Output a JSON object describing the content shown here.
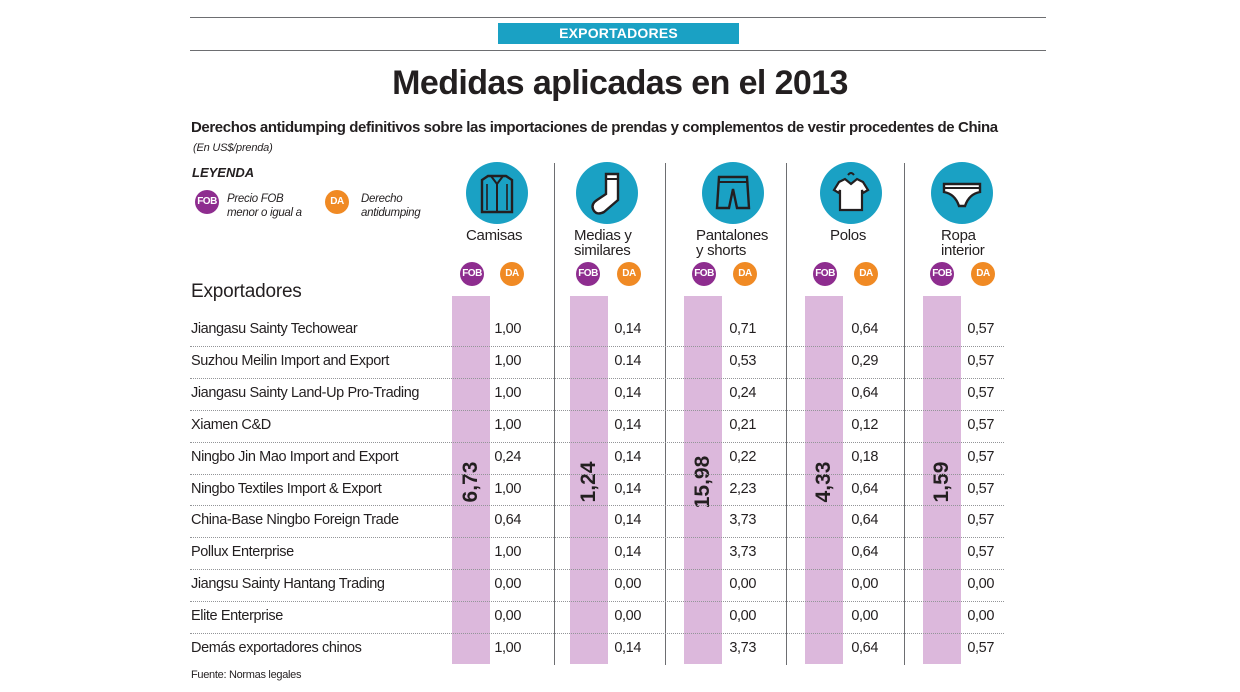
{
  "header": {
    "section": "EXPORTADORES",
    "title": "Medidas aplicadas en el 2013",
    "subtitle": "Derechos antidumping definitivos sobre las importaciones de prendas y complementos de vestir procedentes de China",
    "unit": "(En US$/prenda)"
  },
  "legend": {
    "title": "LEYENDA",
    "fob_badge": "FOB",
    "fob_line1": "Precio FOB",
    "fob_line2": "menor o igual a",
    "da_badge": "DA",
    "da_line1": "Derecho",
    "da_line2": "antidumping"
  },
  "colors": {
    "accent": "#1aa1c4",
    "fob": "#8e2d8f",
    "da": "#f08a24",
    "fob_bar": "#dcb8dc"
  },
  "chart_data": {
    "type": "table",
    "row_header": "Exportadores",
    "categories": [
      {
        "name_line1": "Camisas",
        "name_line2": "",
        "icon": "shirt-icon",
        "fob": "6,73",
        "da": [
          "1,00",
          "1,00",
          "1,00",
          "1,00",
          "0,24",
          "1,00",
          "0,64",
          "1,00",
          "0,00",
          "0,00",
          "1,00"
        ]
      },
      {
        "name_line1": "Medias y",
        "name_line2": "similares",
        "icon": "sock-icon",
        "fob": "1,24",
        "da": [
          "0,14",
          "0.14",
          "0,14",
          "0,14",
          "0,14",
          "0,14",
          "0,14",
          "0,14",
          "0,00",
          "0,00",
          "0,14"
        ]
      },
      {
        "name_line1": "Pantalones",
        "name_line2": "y shorts",
        "icon": "shorts-icon",
        "fob": "15,98",
        "da": [
          "0,71",
          "0,53",
          "0,24",
          "0,21",
          "0,22",
          "2,23",
          "3,73",
          "3,73",
          "0,00",
          "0,00",
          "3,73"
        ]
      },
      {
        "name_line1": "Polos",
        "name_line2": "",
        "icon": "polo-shirt-icon",
        "fob": "4,33",
        "da": [
          "0,64",
          "0,29",
          "0,64",
          "0,12",
          "0,18",
          "0,64",
          "0,64",
          "0,64",
          "0,00",
          "0,00",
          "0,64"
        ]
      },
      {
        "name_line1": "Ropa",
        "name_line2": "interior",
        "icon": "underwear-icon",
        "fob": "1,59",
        "da": [
          "0,57",
          "0,57",
          "0,57",
          "0,57",
          "0,57",
          "0,57",
          "0,57",
          "0,57",
          "0,00",
          "0,00",
          "0,57"
        ]
      }
    ],
    "exporters": [
      "Jiangasu Sainty Techowear",
      "Suzhou Meilin Import and Export",
      "Jiangasu Sainty Land-Up Pro-Trading",
      "Xiamen C&D",
      "Ningbo Jin Mao Import and Export",
      "Ningbo Textiles Import & Export",
      "China-Base Ningbo Foreign Trade",
      "Pollux Enterprise",
      "Jiangsu Sainty Hantang Trading",
      "Elite Enterprise",
      "Demás exportadores chinos"
    ]
  },
  "footer": {
    "source": "Fuente: Normas legales"
  }
}
